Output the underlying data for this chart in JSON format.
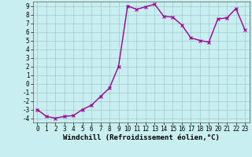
{
  "x": [
    0,
    1,
    2,
    3,
    4,
    5,
    6,
    7,
    8,
    9,
    10,
    11,
    12,
    13,
    14,
    15,
    16,
    17,
    18,
    19,
    20,
    21,
    22,
    23
  ],
  "y": [
    -3.0,
    -3.8,
    -4.0,
    -3.8,
    -3.7,
    -3.0,
    -2.5,
    -1.5,
    -0.5,
    2.0,
    9.0,
    8.6,
    8.9,
    9.2,
    7.8,
    7.7,
    6.8,
    5.3,
    5.0,
    4.8,
    7.5,
    7.6,
    8.7,
    6.2
  ],
  "line_color": "#990099",
  "marker": "x",
  "bg_color": "#c8eef0",
  "grid_color": "#a0c8d0",
  "xlabel": "Windchill (Refroidissement éolien,°C)",
  "ylabel_ticks": [
    "-4",
    "-3",
    "-2",
    "-1",
    "0",
    "1",
    "2",
    "3",
    "4",
    "5",
    "6",
    "7",
    "8",
    "9"
  ],
  "yticks": [
    -4,
    -3,
    -2,
    -1,
    0,
    1,
    2,
    3,
    4,
    5,
    6,
    7,
    8,
    9
  ],
  "ylim": [
    -4.5,
    9.5
  ],
  "xlim": [
    -0.5,
    23.5
  ],
  "xticks": [
    0,
    1,
    2,
    3,
    4,
    5,
    6,
    7,
    8,
    9,
    10,
    11,
    12,
    13,
    14,
    15,
    16,
    17,
    18,
    19,
    20,
    21,
    22,
    23
  ],
  "xlabel_fontsize": 6.5,
  "tick_fontsize": 5.5,
  "linewidth": 1.0,
  "markersize": 2.5
}
